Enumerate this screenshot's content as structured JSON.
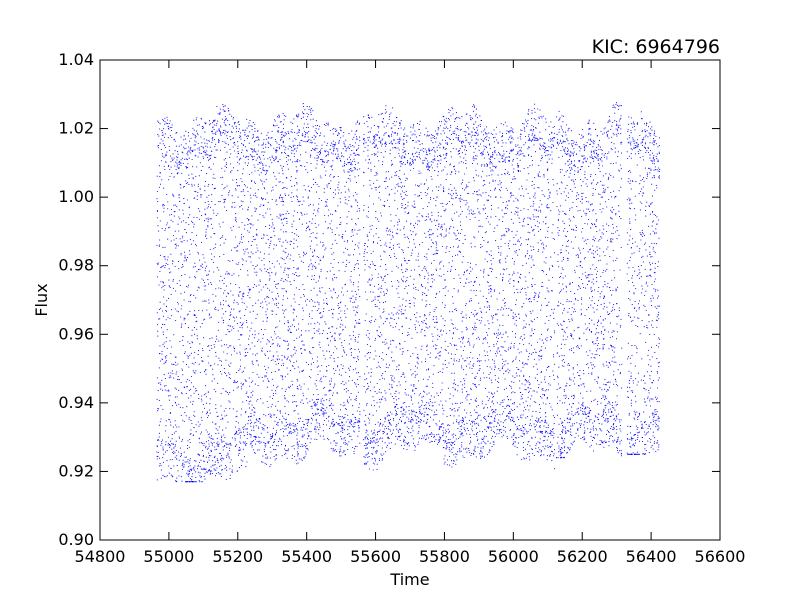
{
  "chart_data": {
    "type": "scatter",
    "title": "KIC: 6964796",
    "xlabel": "Time",
    "ylabel": "Flux",
    "xlim": [
      54800,
      56600
    ],
    "ylim": [
      0.9,
      1.04
    ],
    "x_ticks": [
      "54800",
      "55000",
      "55200",
      "55400",
      "55600",
      "55800",
      "56000",
      "56200",
      "56400",
      "56600"
    ],
    "y_ticks": [
      "0.90",
      "0.92",
      "0.94",
      "0.96",
      "0.98",
      "1.00",
      "1.02",
      "1.04"
    ],
    "grid": false,
    "legend": "none",
    "marker_color": "#0000ff",
    "series": [
      {
        "segments": [
          {
            "x_start": 54965,
            "x_end": 55555,
            "y_min": 0.917,
            "y_max": 1.028
          },
          {
            "x_start": 55565,
            "x_end": 56120,
            "y_min": 0.92,
            "y_max": 1.029
          },
          {
            "x_start": 56125,
            "x_end": 56315,
            "y_min": 0.924,
            "y_max": 1.028
          },
          {
            "x_start": 56330,
            "x_end": 56425,
            "y_min": 0.925,
            "y_max": 1.027
          }
        ],
        "dense_bands": {
          "upper": 1.016,
          "lower": 0.932
        }
      }
    ]
  }
}
